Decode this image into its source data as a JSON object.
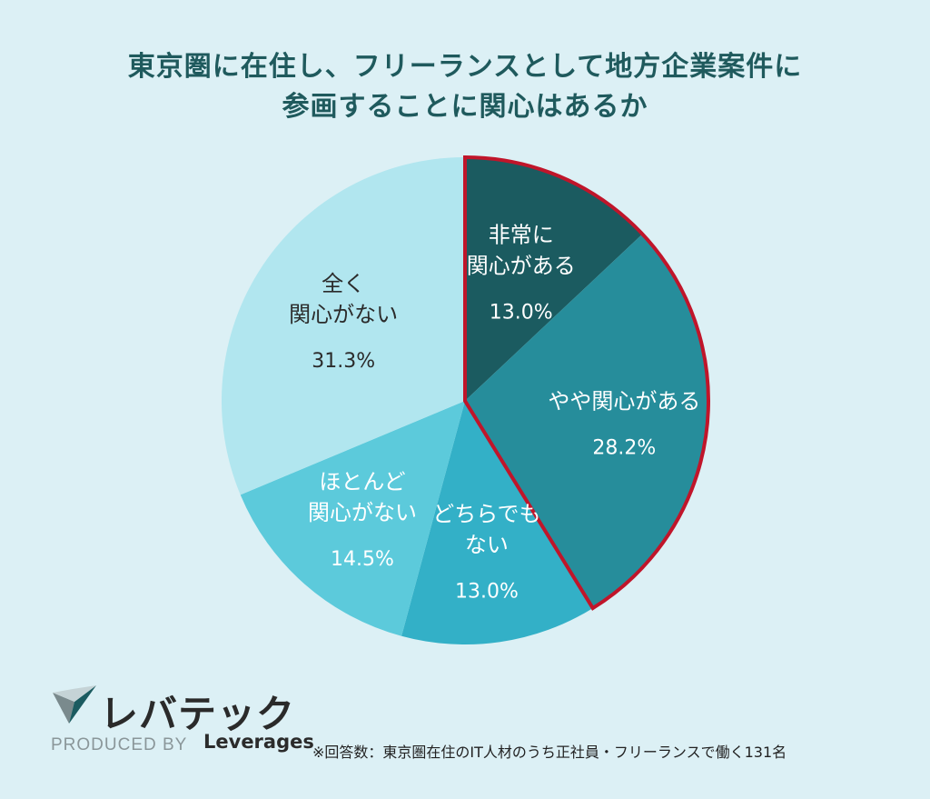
{
  "title_line1": "東京圏に在住し、フリーランスとして地方企業案件に",
  "title_line2": "参画することに関心はあるか",
  "chart_data": {
    "type": "pie",
    "title": "東京圏に在住し、フリーランスとして地方企業案件に参画することに関心はあるか",
    "unit": "%",
    "slices": [
      {
        "label_lines": [
          "非常に",
          "関心がある"
        ],
        "value": 13.0,
        "value_text": "13.0%",
        "color": "#1b5b60",
        "text_color": "#ffffff",
        "highlighted": true
      },
      {
        "label_lines": [
          "やや関心がある"
        ],
        "value": 28.2,
        "value_text": "28.2%",
        "color": "#268d9b",
        "text_color": "#ffffff",
        "highlighted": true
      },
      {
        "label_lines": [
          "どちらでも",
          "ない"
        ],
        "value": 13.0,
        "value_text": "13.0%",
        "color": "#33b0c7",
        "text_color": "#ffffff",
        "highlighted": false
      },
      {
        "label_lines": [
          "ほとんど",
          "関心がない"
        ],
        "value": 14.5,
        "value_text": "14.5%",
        "color": "#5ccadb",
        "text_color": "#ffffff",
        "highlighted": false
      },
      {
        "label_lines": [
          "全く",
          "関心がない"
        ],
        "value": 31.3,
        "value_text": "31.3%",
        "color": "#b1e6ef",
        "text_color": "#2b2b2b",
        "highlighted": false
      }
    ],
    "highlight_color": "#c0152a"
  },
  "logo_text": "レバテック",
  "produced_by": "PRODUCED BY",
  "brand": "Leverages",
  "footnote": "※回答数：東京圏在住のIT人材のうち正社員・フリーランスで働く131名"
}
